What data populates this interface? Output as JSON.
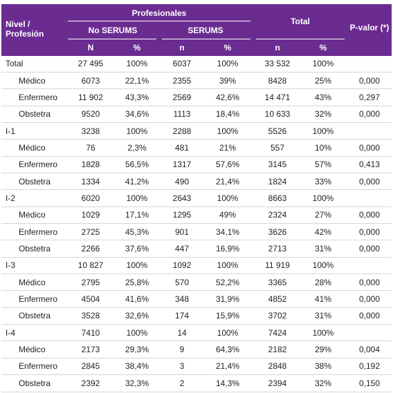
{
  "header": {
    "level": "Nivel / Profesión",
    "professionals": "Profesionales",
    "no_serums": "No SERUMS",
    "serums": "SERUMS",
    "total": "Total",
    "p_value": "P-valor (*)",
    "sub": [
      "N",
      "%",
      "n",
      "%",
      "n",
      "%"
    ]
  },
  "rows": [
    {
      "label": "Total",
      "cells": [
        "27 495",
        "100%",
        "6037",
        "100%",
        "33 532",
        "100%"
      ]
    },
    {
      "label": "Médico",
      "cells": [
        "6073",
        "22,1%",
        "2355",
        "39%",
        "8428",
        "25%"
      ],
      "p": "0,000"
    },
    {
      "label": "Enfermero",
      "cells": [
        "11 902",
        "43,3%",
        "2569",
        "42,6%",
        "14 471",
        "43%"
      ],
      "p": "0,297"
    },
    {
      "label": "Obstetra",
      "cells": [
        "9520",
        "34,6%",
        "1113",
        "18,4%",
        "10 633",
        "32%"
      ],
      "p": "0,000"
    },
    {
      "label": "I-1",
      "cells": [
        "3238",
        "100%",
        "2288",
        "100%",
        "5526",
        "100%"
      ]
    },
    {
      "label": "Médico",
      "cells": [
        "76",
        "2,3%",
        "481",
        "21%",
        "557",
        "10%"
      ],
      "p": "0,000"
    },
    {
      "label": "Enfermero",
      "cells": [
        "1828",
        "56,5%",
        "1317",
        "57,6%",
        "3145",
        "57%"
      ],
      "p": "0,413"
    },
    {
      "label": "Obstetra",
      "cells": [
        "1334",
        "41,2%",
        "490",
        "21,4%",
        "1824",
        "33%"
      ],
      "p": "0,000"
    },
    {
      "label": "I-2",
      "cells": [
        "6020",
        "100%",
        "2643",
        "100%",
        "8663",
        "100%"
      ]
    },
    {
      "label": "Médico",
      "cells": [
        "1029",
        "17,1%",
        "1295",
        "49%",
        "2324",
        "27%"
      ],
      "p": "0,000"
    },
    {
      "label": "Enfermero",
      "cells": [
        "2725",
        "45,3%",
        "901",
        "34,1%",
        "3626",
        "42%"
      ],
      "p": "0,000"
    },
    {
      "label": "Obstetra",
      "cells": [
        "2266",
        "37,6%",
        "447",
        "16,9%",
        "2713",
        "31%"
      ],
      "p": "0,000"
    },
    {
      "label": "I-3",
      "cells": [
        "10 827",
        "100%",
        "1092",
        "100%",
        "11 919",
        "100%"
      ]
    },
    {
      "label": "Médico",
      "cells": [
        "2795",
        "25,8%",
        "570",
        "52,2%",
        "3365",
        "28%"
      ],
      "p": "0,000"
    },
    {
      "label": "Enfermero",
      "cells": [
        "4504",
        "41,6%",
        "348",
        "31,9%",
        "4852",
        "41%"
      ],
      "p": "0,000"
    },
    {
      "label": "Obstetra",
      "cells": [
        "3528",
        "32,6%",
        "174",
        "15,9%",
        "3702",
        "31%"
      ],
      "p": "0,000"
    },
    {
      "label": "I-4",
      "cells": [
        "7410",
        "100%",
        "14",
        "100%",
        "7424",
        "100%"
      ]
    },
    {
      "label": "Médico",
      "cells": [
        "2173",
        "29,3%",
        "9",
        "64,3%",
        "2182",
        "29%"
      ],
      "p": "0,004"
    },
    {
      "label": "Enfermero",
      "cells": [
        "2845",
        "38,4%",
        "3",
        "21,4%",
        "2848",
        "38%"
      ],
      "p": "0,192"
    },
    {
      "label": "Obstetra",
      "cells": [
        "2392",
        "32,3%",
        "2",
        "14,3%",
        "2394",
        "32%"
      ],
      "p": "0,150"
    }
  ]
}
